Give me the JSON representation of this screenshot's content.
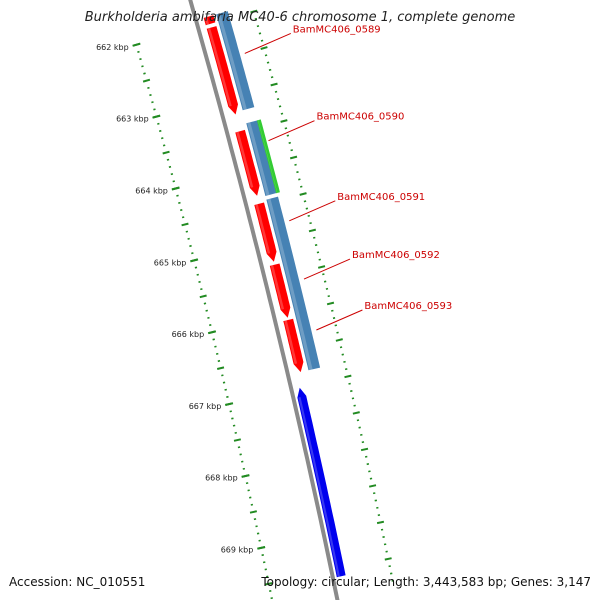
{
  "title": "Burkholderia ambifaria MC40-6 chromosome 1, complete genome",
  "footer": {
    "accession": "Accession: NC_010551",
    "topology": "Topology: circular; Length: 3,443,583 bp; Genes: 3,147"
  },
  "colors": {
    "backbone": "#8a8a8a",
    "forward_cds": "#ff0000",
    "reverse_cds": "#4682b4",
    "green_feature": "#33cc33",
    "blue_gene": "#0000ee",
    "ticks": "#228b22",
    "gene_label": "#cc0000"
  },
  "kbp_labels": [
    "662 kbp",
    "663 kbp",
    "664 kbp",
    "665 kbp",
    "666 kbp",
    "667 kbp",
    "668 kbp",
    "669 kbp"
  ],
  "gene_labels": [
    "BamMC406_0589",
    "BamMC406_0590",
    "BamMC406_0591",
    "BamMC406_0592",
    "BamMC406_0593"
  ],
  "features": [
    {
      "track": "forward",
      "start_kbp": 661.9,
      "end_kbp": 662.0,
      "direction": "none",
      "color": "forward_cds"
    },
    {
      "track": "forward",
      "start_kbp": 662.05,
      "end_kbp": 663.25,
      "direction": "reverse",
      "color": "forward_cds"
    },
    {
      "track": "reverse",
      "start_kbp": 661.9,
      "end_kbp": 663.22,
      "direction": "none",
      "color": "reverse_cds"
    },
    {
      "track": "forward",
      "start_kbp": 663.48,
      "end_kbp": 664.37,
      "direction": "reverse",
      "color": "forward_cds"
    },
    {
      "track": "reverse",
      "start_kbp": 663.4,
      "end_kbp": 664.4,
      "direction": "none",
      "color": "reverse_cds"
    },
    {
      "track": "outer",
      "start_kbp": 663.4,
      "end_kbp": 664.4,
      "direction": "none",
      "color": "green_feature"
    },
    {
      "track": "forward",
      "start_kbp": 664.48,
      "end_kbp": 665.28,
      "direction": "reverse",
      "color": "forward_cds"
    },
    {
      "track": "forward",
      "start_kbp": 665.32,
      "end_kbp": 666.05,
      "direction": "reverse",
      "color": "forward_cds"
    },
    {
      "track": "forward",
      "start_kbp": 666.08,
      "end_kbp": 666.8,
      "direction": "reverse",
      "color": "forward_cds"
    },
    {
      "track": "reverse",
      "start_kbp": 664.45,
      "end_kbp": 666.8,
      "direction": "none",
      "color": "reverse_cds"
    },
    {
      "track": "blue",
      "start_kbp": 667.0,
      "end_kbp": 669.6,
      "direction": "forward",
      "color": "blue_gene"
    }
  ]
}
